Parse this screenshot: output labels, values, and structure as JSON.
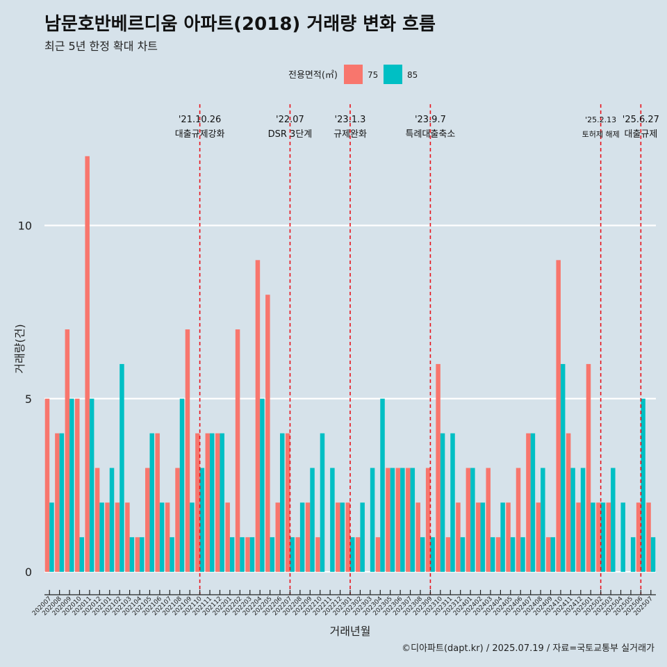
{
  "title": "남문호반베르디움 아파트(2018) 거래량 변화 흐름",
  "subtitle": "최근 5년 한정 확대 차트",
  "caption": "©디아파트(dapt.kr) / 2025.07.19 / 자료=국토교통부 실거래가",
  "colors": {
    "s75": "#f8766d",
    "s85": "#00bfc4",
    "event": "#e8121b",
    "grid": "#ffffff",
    "background": "#d6e2ea"
  },
  "chart_data": {
    "type": "bar",
    "xlabel": "거래년월",
    "ylabel": "거래량(건)",
    "ylim": [
      -0.5,
      13.5
    ],
    "yticks": [
      0,
      5,
      10
    ],
    "legend": {
      "title": "전용면적(㎡)",
      "position": "top"
    },
    "categories": [
      "202007",
      "202008",
      "202009",
      "202010",
      "202011",
      "202012",
      "202101",
      "202102",
      "202103",
      "202104",
      "202105",
      "202106",
      "202107",
      "202108",
      "202109",
      "202110",
      "202111",
      "202112",
      "202201",
      "202202",
      "202203",
      "202204",
      "202205",
      "202206",
      "202207",
      "202208",
      "202209",
      "202210",
      "202211",
      "202212",
      "202301",
      "202302",
      "202303",
      "202304",
      "202305",
      "202306",
      "202307",
      "202308",
      "202309",
      "202310",
      "202311",
      "202312",
      "202401",
      "202402",
      "202403",
      "202404",
      "202405",
      "202406",
      "202407",
      "202408",
      "202409",
      "202410",
      "202411",
      "202412",
      "202501",
      "202502",
      "202503",
      "202504",
      "202505",
      "202506",
      "202507"
    ],
    "series": [
      {
        "name": "75",
        "values": [
          5,
          4,
          7,
          5,
          12,
          3,
          2,
          2,
          2,
          1,
          3,
          4,
          2,
          3,
          7,
          4,
          4,
          4,
          2,
          7,
          1,
          9,
          8,
          2,
          4,
          1,
          2,
          1,
          0,
          2,
          2,
          1,
          0,
          1,
          3,
          3,
          3,
          2,
          3,
          6,
          1,
          2,
          3,
          2,
          3,
          1,
          2,
          3,
          4,
          2,
          1,
          9,
          4,
          2,
          6,
          2,
          2,
          0,
          0,
          2,
          2
        ]
      },
      {
        "name": "85",
        "values": [
          2,
          4,
          5,
          1,
          5,
          2,
          3,
          6,
          1,
          1,
          4,
          2,
          1,
          5,
          2,
          3,
          4,
          4,
          1,
          1,
          1,
          5,
          1,
          4,
          1,
          2,
          3,
          4,
          3,
          2,
          1,
          2,
          3,
          5,
          3,
          3,
          3,
          1,
          1,
          4,
          4,
          1,
          3,
          2,
          1,
          2,
          1,
          1,
          4,
          3,
          1,
          6,
          3,
          3,
          2,
          2,
          3,
          2,
          1,
          5,
          1
        ]
      }
    ],
    "events": [
      {
        "date": "'21.10.26",
        "label": "대출규제강화",
        "category": "202110",
        "small": false
      },
      {
        "date": "'22.07",
        "label": "DSR 3단계",
        "category": "202207",
        "small": false
      },
      {
        "date": "'23.1.3",
        "label": "규제완화",
        "category": "202301",
        "small": false
      },
      {
        "date": "'23.9.7",
        "label": "특례대출축소",
        "category": "202309",
        "small": false
      },
      {
        "date": "'25.2.13",
        "label": "토허제 해제",
        "category": "202502",
        "small": true
      },
      {
        "date": "'25.6.27",
        "label": "대출규제",
        "category": "202506",
        "small": false
      }
    ]
  }
}
